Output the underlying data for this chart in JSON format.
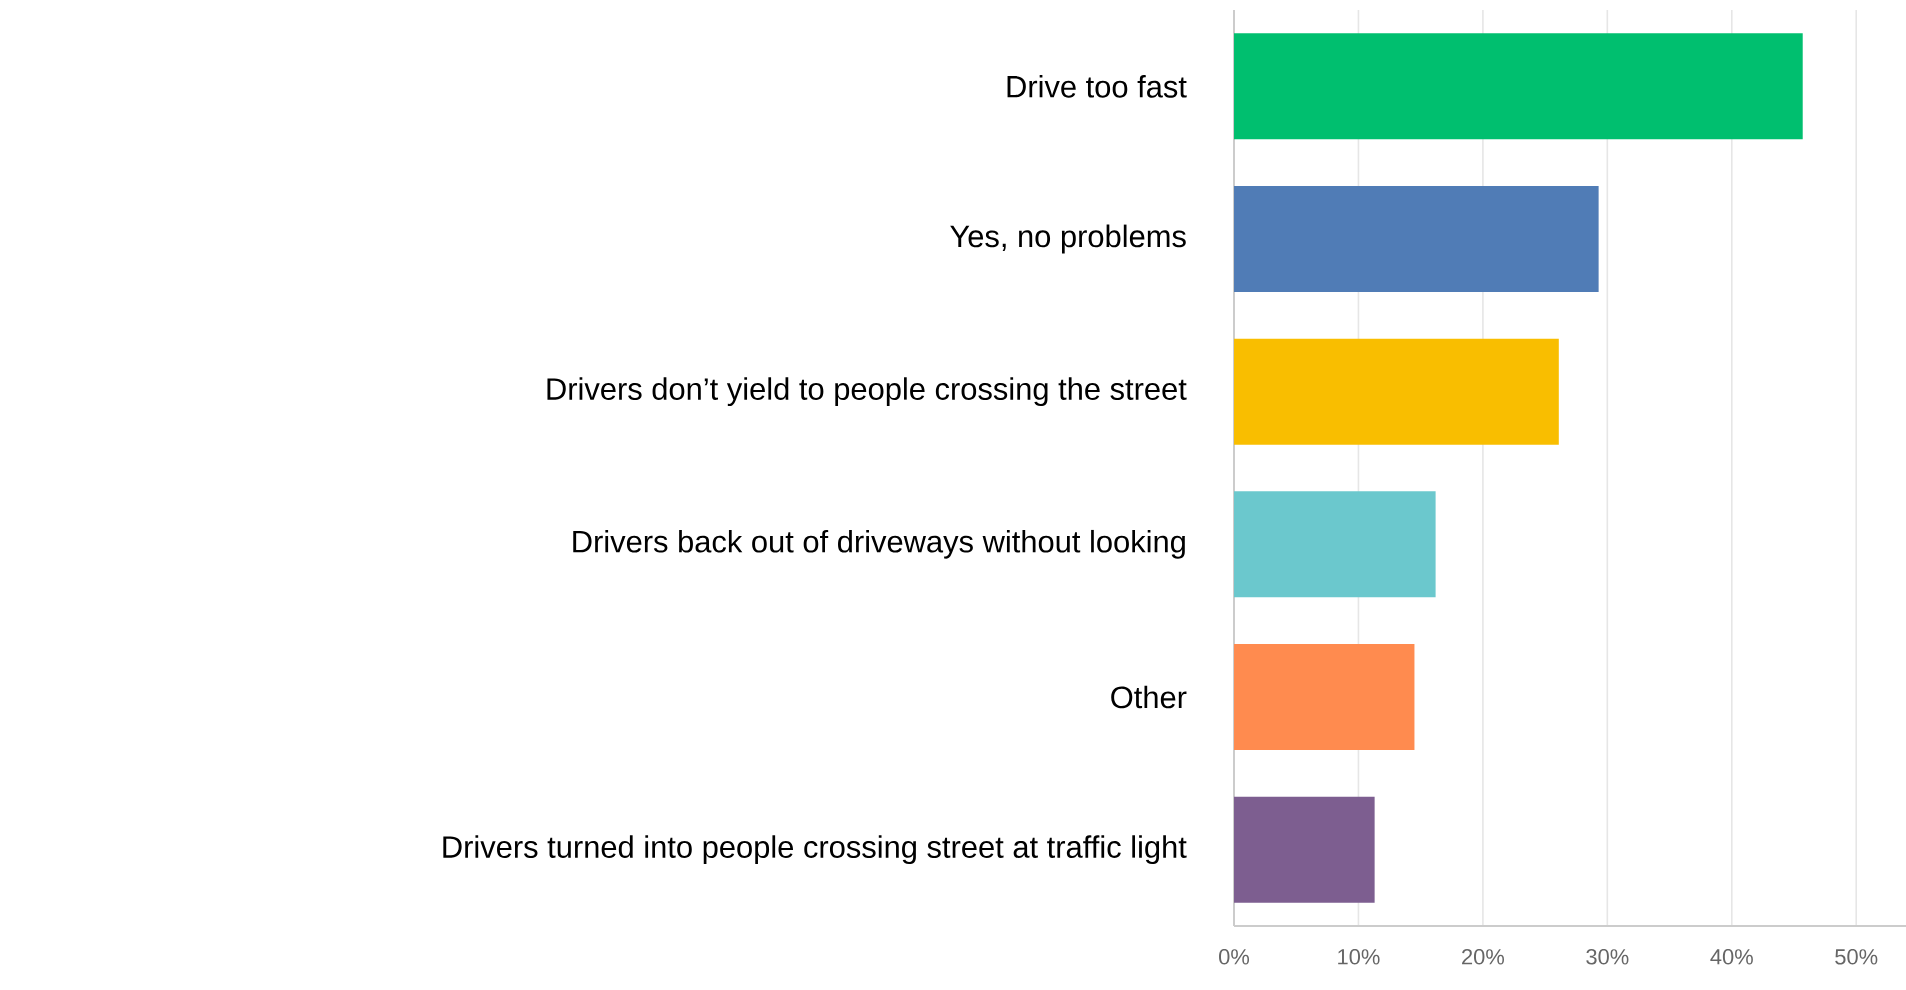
{
  "chart_data": {
    "type": "bar",
    "orientation": "horizontal",
    "categories": [
      "Drive too fast",
      "Yes, no problems",
      "Drivers don’t yield to people crossing the street",
      "Drivers back out of driveways without looking",
      "Other",
      "Drivers turned into people crossing street at traffic light"
    ],
    "values": [
      45.7,
      29.3,
      26.1,
      16.2,
      14.5,
      11.3
    ],
    "colors": [
      "#00bf6f",
      "#507cb6",
      "#f9be00",
      "#6bc8cd",
      "#ff8b4f",
      "#7d5e90"
    ],
    "xlim": [
      0,
      54
    ],
    "xticks": [
      {
        "value": 0,
        "label": "0%"
      },
      {
        "value": 10,
        "label": "10%"
      },
      {
        "value": 20,
        "label": "20%"
      },
      {
        "value": 30,
        "label": "30%"
      },
      {
        "value": 40,
        "label": "40%"
      },
      {
        "value": 50,
        "label": "50%"
      }
    ],
    "grid": "x"
  }
}
